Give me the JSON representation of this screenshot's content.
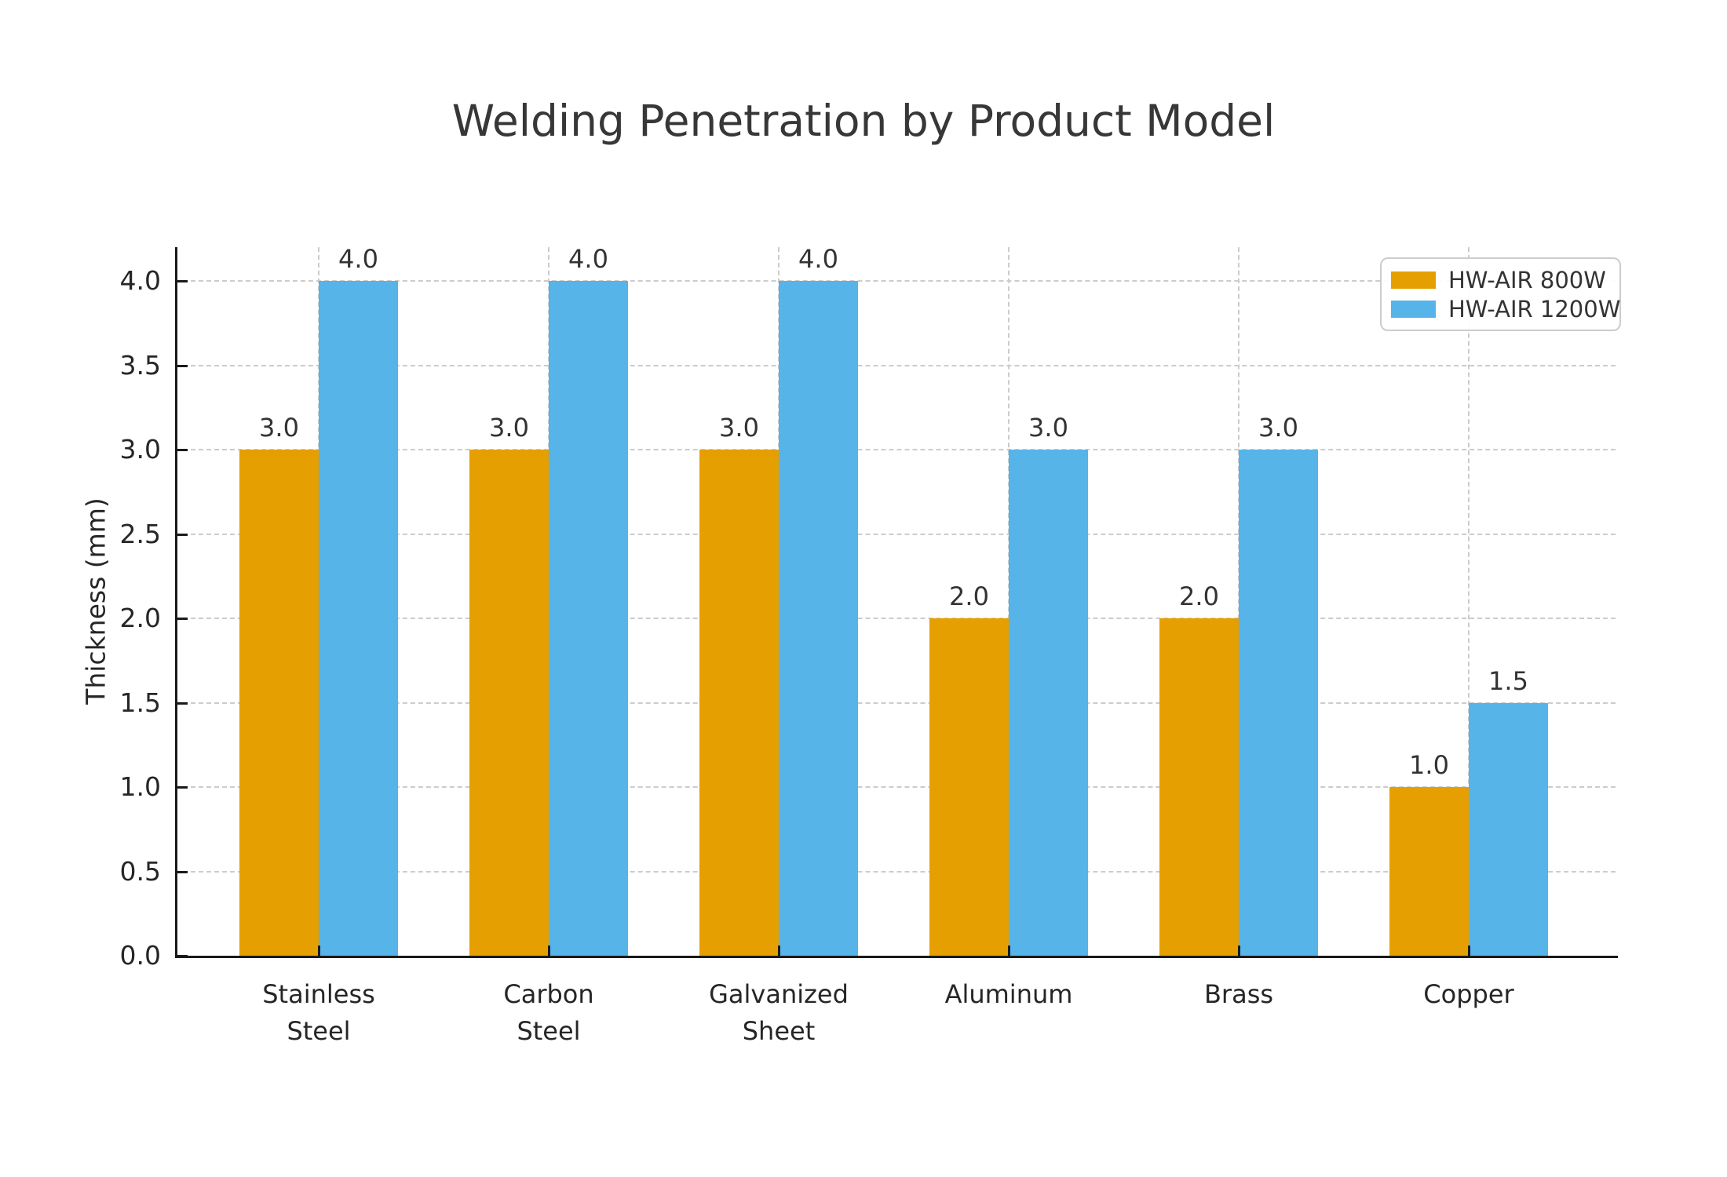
{
  "title": "Welding Penetration by Product Model",
  "chart_data": {
    "type": "bar",
    "title": "Welding Penetration by Product Model",
    "categories": [
      "Stainless Steel",
      "Carbon Steel",
      "Galvanized Sheet",
      "Aluminum",
      "Brass",
      "Copper"
    ],
    "category_lines": [
      [
        "Stainless",
        "Steel"
      ],
      [
        "Carbon",
        "Steel"
      ],
      [
        "Galvanized",
        "Sheet"
      ],
      [
        "Aluminum"
      ],
      [
        "Brass"
      ],
      [
        "Copper"
      ]
    ],
    "series": [
      {
        "name": "HW-AIR 800W",
        "color": "#E69F00",
        "values": [
          3.0,
          3.0,
          3.0,
          2.0,
          2.0,
          1.0
        ]
      },
      {
        "name": "HW-AIR 1200W",
        "color": "#56B4E9",
        "values": [
          4.0,
          4.0,
          4.0,
          3.0,
          3.0,
          1.5
        ]
      }
    ],
    "xlabel": "",
    "ylabel": "Thickness (mm)",
    "ylim": [
      0,
      4.2
    ],
    "yticks": [
      0.0,
      0.5,
      1.0,
      1.5,
      2.0,
      2.5,
      3.0,
      3.5,
      4.0
    ],
    "ytick_labels": [
      "0.0",
      "0.5",
      "1.0",
      "1.5",
      "2.0",
      "2.5",
      "3.0",
      "3.5",
      "4.0"
    ],
    "grid": true,
    "grid_style": "dashed",
    "legend_position": "upper right",
    "value_label_decimals": 1
  },
  "colors": {
    "background": "#ffffff",
    "grid": "#cccccc",
    "spine": "#1a1a1a",
    "tick_text": "#262626",
    "title_text": "#373737",
    "series_800w": "#E69F00",
    "series_1200w": "#56B4E9"
  }
}
